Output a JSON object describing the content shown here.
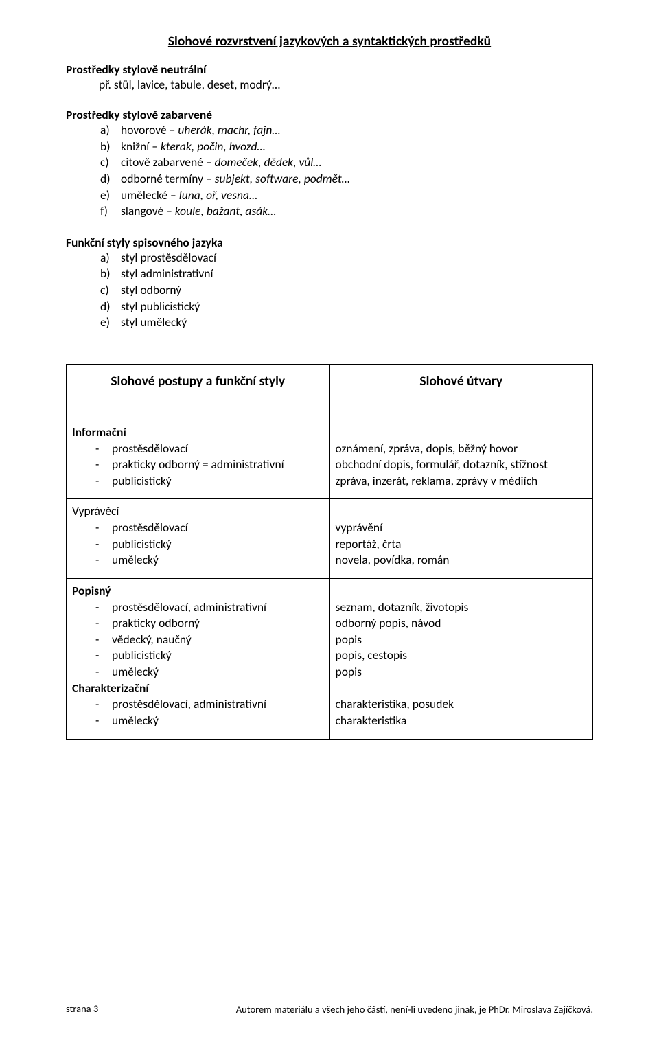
{
  "title": "Slohové rozvrstvení jazykových a syntaktických prostředků",
  "section1": {
    "heading": "Prostředky stylově neutrální",
    "example_prefix": "př. ",
    "example_text": "stůl, lavice, tabule, deset, modrý…"
  },
  "section2": {
    "heading": "Prostředky stylově zabarvené",
    "items": [
      {
        "m": "a)",
        "label": "hovorové – ",
        "ex": "uherák, machr, fajn…"
      },
      {
        "m": "b)",
        "label": "knižní – ",
        "ex": "kterak, počin, hvozd…"
      },
      {
        "m": "c)",
        "label": "citově zabarvené – ",
        "ex": "domeček, dědek, vůl…"
      },
      {
        "m": "d)",
        "label": "odborné termíny – ",
        "ex": "subjekt, software, podmět…"
      },
      {
        "m": "e)",
        "label": "umělecké – ",
        "ex": "luna, oř, vesna…"
      },
      {
        "m": "f)",
        "label": "slangové – ",
        "ex": "koule, bažant, asák…"
      }
    ]
  },
  "section3": {
    "heading": "Funkční styly spisovného jazyka",
    "items": [
      {
        "m": "a)",
        "label": "styl prostěsdělovací"
      },
      {
        "m": "b)",
        "label": "styl administrativní"
      },
      {
        "m": "c)",
        "label": "styl odborný"
      },
      {
        "m": "d)",
        "label": "styl publicistický"
      },
      {
        "m": "e)",
        "label": "styl umělecký"
      }
    ]
  },
  "table": {
    "header_left": "Slohové postupy a funkční styly",
    "header_right": "Slohové útvary",
    "rows": [
      {
        "left_title": "Informační",
        "left_bold": true,
        "left_items": [
          "prostěsdělovací",
          "prakticky odborný = administrativní",
          "publicistický"
        ],
        "right_lines": [
          "oznámení, zpráva, dopis, běžný hovor",
          "obchodní dopis, formulář, dotazník, stížnost",
          "zpráva, inzerát, reklama, zprávy v médiích"
        ]
      },
      {
        "left_title": "Vyprávěcí",
        "left_bold": false,
        "left_items": [
          "prostěsdělovací",
          "publicistický",
          "umělecký"
        ],
        "right_lines": [
          "vyprávění",
          "reportáž, črta",
          "novela, povídka, román"
        ]
      },
      {
        "left_title": "Popisný",
        "left_bold": true,
        "left_items": [
          "prostěsdělovací, administrativní",
          "prakticky odborný",
          "vědecký, naučný",
          "publicistický",
          "umělecký"
        ],
        "second_title": "Charakterizační",
        "second_bold": true,
        "second_items": [
          "prostěsdělovací, administrativní",
          "umělecký"
        ],
        "right_lines": [
          "seznam, dotazník, životopis",
          "odborný popis, návod",
          "popis",
          "popis, cestopis",
          "popis",
          "",
          "charakteristika, posudek",
          "charakteristika"
        ]
      }
    ]
  },
  "footer": {
    "page": "strana 3",
    "text": "Autorem materiálu a všech jeho částí, není-li uvedeno jinak, je PhDr. Miroslava Zajíčková."
  },
  "colors": {
    "text": "#000000",
    "background": "#ffffff",
    "table_border": "#000000",
    "footer_border": "#7f7f7f"
  },
  "typography": {
    "base_fontsize_pt": 12,
    "title_fontsize_pt": 14,
    "footer_fontsize_pt": 10,
    "font_family": "Calibri"
  }
}
